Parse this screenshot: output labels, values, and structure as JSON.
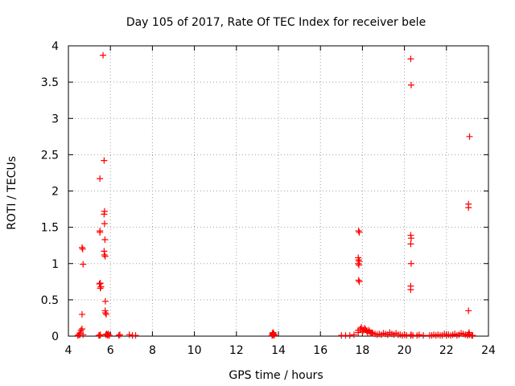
{
  "chart_data": {
    "type": "scatter",
    "title": "Day 105 of 2017, Rate Of TEC Index for receiver bele",
    "xlabel": "GPS time / hours",
    "ylabel": "ROTI / TECUs",
    "xlim": [
      4,
      24
    ],
    "ylim": [
      0,
      4
    ],
    "xticks": [
      "4",
      "6",
      "8",
      "10",
      "12",
      "14",
      "16",
      "18",
      "20",
      "22",
      "24"
    ],
    "yticks": [
      "0",
      "0.5",
      "1",
      "1.5",
      "2",
      "2.5",
      "3",
      "3.5",
      "4"
    ],
    "grid": true,
    "marker": "plus",
    "color": "#ff0000",
    "x": [
      4.45,
      4.5,
      4.55,
      4.6,
      4.65,
      4.7,
      4.55,
      4.65,
      4.7,
      4.68,
      4.65,
      5.45,
      5.5,
      5.5,
      5.52,
      5.55,
      5.48,
      5.52,
      5.5,
      5.5,
      5.52,
      5.65,
      5.7,
      5.72,
      5.7,
      5.72,
      5.74,
      5.7,
      5.72,
      5.75,
      5.76,
      5.75,
      5.76,
      5.8,
      5.78,
      5.82,
      5.85,
      5.88,
      5.9,
      5.95,
      6.4,
      6.45,
      6.9,
      7.05,
      7.2,
      13.7,
      13.72,
      13.75,
      13.78,
      13.8,
      13.72,
      13.75,
      13.7,
      13.78,
      17.0,
      17.2,
      17.4,
      17.6,
      17.8,
      17.82,
      17.85,
      17.8,
      17.82,
      17.85,
      17.8,
      17.83,
      17.82,
      17.85,
      17.8,
      17.9,
      17.95,
      18.0,
      18.05,
      18.1,
      18.15,
      18.2,
      18.25,
      18.3,
      18.35,
      18.4,
      18.45,
      18.5,
      18.6,
      18.7,
      18.8,
      18.9,
      19.0,
      19.1,
      19.2,
      19.3,
      19.4,
      19.5,
      19.6,
      19.7,
      19.8,
      19.9,
      20.0,
      20.1,
      20.3,
      20.32,
      20.3,
      20.32,
      20.3,
      20.32,
      20.3,
      20.3,
      20.32,
      20.3,
      20.4,
      20.6,
      20.7,
      20.9,
      21.2,
      21.3,
      21.4,
      21.5,
      21.6,
      21.7,
      21.8,
      21.9,
      22.0,
      22.1,
      22.2,
      22.3,
      22.4,
      22.5,
      22.6,
      22.7,
      22.8,
      22.9,
      23.0,
      23.05,
      23.1,
      23.05,
      23.05,
      23.05,
      23.08,
      23.1,
      23.2,
      23.25
    ],
    "y": [
      0.01,
      0.02,
      0.04,
      0.08,
      0.1,
      0.02,
      0.02,
      0.3,
      0.99,
      1.2,
      1.22,
      0.01,
      1.43,
      1.45,
      0.66,
      0.68,
      0.72,
      0.73,
      2.17,
      0.01,
      0.02,
      3.87,
      2.42,
      1.72,
      1.68,
      1.55,
      1.33,
      1.17,
      1.12,
      1.1,
      0.48,
      0.35,
      0.32,
      0.3,
      0.02,
      0.03,
      0.02,
      0.01,
      0.03,
      0.01,
      0.01,
      0.02,
      0.02,
      0.01,
      0.01,
      0.01,
      0.03,
      0.05,
      0.02,
      0.01,
      0.04,
      0.02,
      0.01,
      0.03,
      0.01,
      0.01,
      0.01,
      0.02,
      0.05,
      1.45,
      1.43,
      1.08,
      1.05,
      1.03,
      1.0,
      0.98,
      0.77,
      0.75,
      0.08,
      0.1,
      0.12,
      0.06,
      0.08,
      0.11,
      0.09,
      0.07,
      0.05,
      0.08,
      0.06,
      0.04,
      0.05,
      0.04,
      0.03,
      0.02,
      0.03,
      0.02,
      0.04,
      0.03,
      0.02,
      0.05,
      0.03,
      0.02,
      0.04,
      0.02,
      0.02,
      0.01,
      0.02,
      0.01,
      3.82,
      3.46,
      1.39,
      1.35,
      1.27,
      1.0,
      0.69,
      0.64,
      0.02,
      0.01,
      0.01,
      0.01,
      0.02,
      0.01,
      0.01,
      0.01,
      0.02,
      0.01,
      0.02,
      0.01,
      0.01,
      0.03,
      0.01,
      0.02,
      0.01,
      0.02,
      0.03,
      0.01,
      0.02,
      0.04,
      0.03,
      0.02,
      0.01,
      0.03,
      2.75,
      1.82,
      1.77,
      0.35,
      0.05,
      0.02,
      0.01,
      0.01
    ]
  }
}
